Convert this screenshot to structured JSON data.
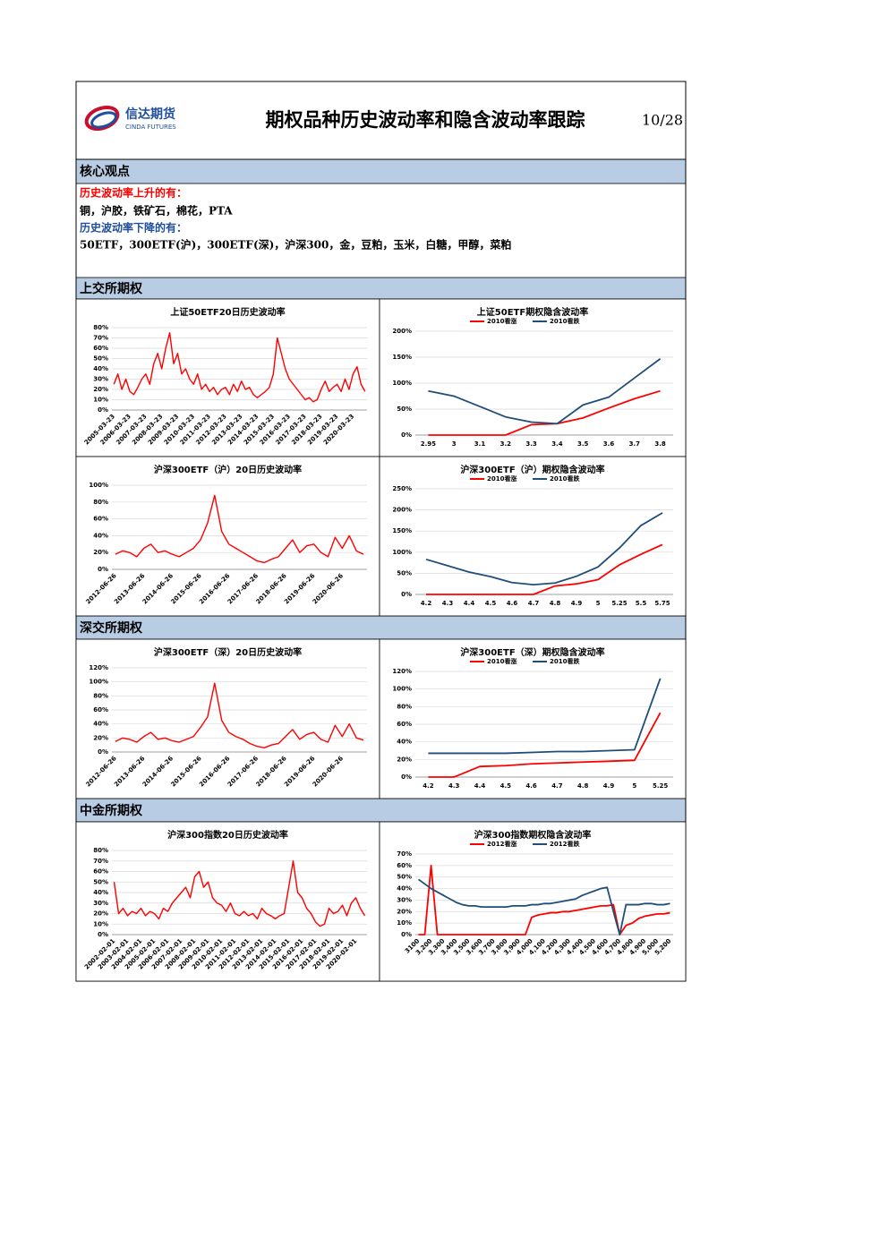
{
  "header": {
    "logo_cn": "信达期货",
    "logo_en": "CINDA FUTURES",
    "title": "期权品种历史波动率和隐含波动率跟踪",
    "date": "10/28"
  },
  "core_view": {
    "title": "核心观点",
    "lines": [
      "历史波动率上升的有：",
      "铜，沪胶，铁矿石，棉花，PTA",
      "历史波动率下降的有：",
      "50ETF，300ETF(沪)，300ETF(深)，沪深300，金，豆粕，玉米，白糖，甲醇，菜粕"
    ]
  },
  "sections": [
    "上交所期权",
    "深交所期权",
    "中金所期权"
  ],
  "chart_data": [
    {
      "type": "line",
      "title": "上证50ETF20日历史波动率",
      "color": "#ff0000",
      "categories": [
        "2005-03-23",
        null,
        null,
        null,
        "2006-03-23",
        null,
        null,
        null,
        "2007-03-23",
        null,
        null,
        null,
        "2008-03-23",
        null,
        null,
        null,
        "2009-03-23",
        null,
        null,
        null,
        "2010-03-23",
        null,
        null,
        null,
        "2011-03-23",
        null,
        null,
        null,
        "2012-03-23",
        null,
        null,
        null,
        "2013-03-23",
        null,
        null,
        null,
        "2014-03-23",
        null,
        null,
        null,
        "2015-03-23",
        null,
        null,
        null,
        "2016-03-23",
        null,
        null,
        null,
        "2017-03-23",
        null,
        null,
        null,
        "2018-03-23",
        null,
        null,
        null,
        "2019-03-23",
        null,
        null,
        null,
        "2020-03-23",
        null,
        null,
        null
      ],
      "values": [
        25,
        35,
        20,
        30,
        18,
        15,
        22,
        30,
        35,
        25,
        45,
        55,
        40,
        60,
        75,
        45,
        55,
        35,
        40,
        30,
        25,
        35,
        20,
        25,
        18,
        22,
        15,
        20,
        22,
        15,
        25,
        18,
        28,
        20,
        22,
        15,
        12,
        15,
        18,
        22,
        35,
        70,
        55,
        40,
        30,
        25,
        20,
        15,
        10,
        12,
        8,
        10,
        20,
        28,
        18,
        22,
        25,
        18,
        30,
        20,
        35,
        42,
        25,
        18
      ],
      "ylim": [
        0,
        80
      ],
      "yticks": [
        {
          "value": 0,
          "label": "0%"
        },
        {
          "value": 10,
          "label": "10%"
        },
        {
          "value": 20,
          "label": "20%"
        },
        {
          "value": 30,
          "label": "30%"
        },
        {
          "value": 40,
          "label": "40%"
        },
        {
          "value": 50,
          "label": "50%"
        },
        {
          "value": 60,
          "label": "60%"
        },
        {
          "value": 70,
          "label": "70%"
        },
        {
          "value": 80,
          "label": "80%"
        }
      ]
    },
    {
      "type": "line",
      "title": "上证50ETF期权隐含波动率",
      "categories": [
        "2.95",
        "3",
        "3.1",
        "3.2",
        "3.3",
        "3.4",
        "3.5",
        "3.6",
        "3.7",
        "3.8"
      ],
      "series": [
        {
          "name": "2010看涨",
          "color": "#ff0000",
          "values": [
            0,
            0,
            0,
            0,
            20,
            22,
            33,
            52,
            70,
            85
          ]
        },
        {
          "name": "2010看跌",
          "color": "#1f4e79",
          "values": [
            85,
            75,
            55,
            35,
            25,
            22,
            58,
            73,
            110,
            147
          ]
        }
      ],
      "ylim": [
        0,
        200
      ],
      "yticks": [
        {
          "value": 0,
          "label": "0%"
        },
        {
          "value": 50,
          "label": "50%"
        },
        {
          "value": 100,
          "label": "100%"
        },
        {
          "value": 150,
          "label": "150%"
        },
        {
          "value": 200,
          "label": "200%"
        }
      ]
    },
    {
      "type": "line",
      "title": "沪深300ETF（沪）20日历史波动率",
      "color": "#ff0000",
      "categories": [
        "2012-06-26",
        null,
        null,
        null,
        "2013-06-26",
        null,
        null,
        null,
        "2014-06-26",
        null,
        null,
        null,
        "2015-06-26",
        null,
        null,
        null,
        "2016-06-26",
        null,
        null,
        null,
        "2017-06-26",
        null,
        null,
        null,
        "2018-06-26",
        null,
        null,
        null,
        "2019-06-26",
        null,
        null,
        null,
        "2020-06-26",
        null,
        null,
        null
      ],
      "values": [
        18,
        22,
        20,
        15,
        25,
        30,
        20,
        22,
        18,
        15,
        20,
        25,
        35,
        55,
        88,
        45,
        30,
        25,
        20,
        15,
        10,
        8,
        12,
        15,
        25,
        35,
        20,
        28,
        30,
        20,
        15,
        38,
        25,
        40,
        22,
        18
      ],
      "ylim": [
        0,
        100
      ],
      "yticks": [
        {
          "value": 0,
          "label": "0%"
        },
        {
          "value": 20,
          "label": "20%"
        },
        {
          "value": 40,
          "label": "40%"
        },
        {
          "value": 60,
          "label": "60%"
        },
        {
          "value": 80,
          "label": "80%"
        },
        {
          "value": 100,
          "label": "100%"
        }
      ]
    },
    {
      "type": "line",
      "title": "沪深300ETF（沪）期权隐含波动率",
      "categories": [
        "4.2",
        "4.3",
        "4.4",
        "4.5",
        "4.6",
        "4.7",
        "4.8",
        "4.9",
        "5",
        "5.25",
        "5.5",
        "5.75"
      ],
      "series": [
        {
          "name": "2010看涨",
          "color": "#ff0000",
          "values": [
            0,
            0,
            0,
            0,
            0,
            0,
            20,
            25,
            35,
            70,
            95,
            118
          ]
        },
        {
          "name": "2010看跌",
          "color": "#1f4e79",
          "values": [
            83,
            68,
            53,
            42,
            28,
            23,
            27,
            43,
            65,
            110,
            163,
            193
          ]
        }
      ],
      "ylim": [
        0,
        250
      ],
      "yticks": [
        {
          "value": 0,
          "label": "0%"
        },
        {
          "value": 50,
          "label": "50%"
        },
        {
          "value": 100,
          "label": "100%"
        },
        {
          "value": 150,
          "label": "150%"
        },
        {
          "value": 200,
          "label": "200%"
        },
        {
          "value": 250,
          "label": "250%"
        }
      ]
    },
    {
      "type": "line",
      "title": "沪深300ETF（深）20日历史波动率",
      "color": "#ff0000",
      "categories": [
        "2012-06-26",
        null,
        null,
        null,
        "2013-06-26",
        null,
        null,
        null,
        "2014-06-26",
        null,
        null,
        null,
        "2015-06-26",
        null,
        null,
        null,
        "2016-06-26",
        null,
        null,
        null,
        "2017-06-26",
        null,
        null,
        null,
        "2018-06-26",
        null,
        null,
        null,
        "2019-06-26",
        null,
        null,
        null,
        "2020-06-26",
        null,
        null,
        null
      ],
      "values": [
        15,
        20,
        18,
        14,
        22,
        28,
        18,
        20,
        16,
        14,
        18,
        22,
        35,
        50,
        98,
        45,
        28,
        22,
        18,
        12,
        8,
        6,
        10,
        12,
        22,
        32,
        18,
        25,
        28,
        18,
        14,
        38,
        22,
        40,
        20,
        17
      ],
      "ylim": [
        0,
        120
      ],
      "yticks": [
        {
          "value": 0,
          "label": "0%"
        },
        {
          "value": 20,
          "label": "20%"
        },
        {
          "value": 40,
          "label": "40%"
        },
        {
          "value": 60,
          "label": "60%"
        },
        {
          "value": 80,
          "label": "80%"
        },
        {
          "value": 100,
          "label": "100%"
        },
        {
          "value": 120,
          "label": "120%"
        }
      ]
    },
    {
      "type": "line",
      "title": "沪深300ETF（深）期权隐含波动率",
      "categories": [
        "4.2",
        "4.3",
        "4.4",
        "4.5",
        "4.6",
        "4.7",
        "4.8",
        "4.9",
        "5",
        "5.25"
      ],
      "series": [
        {
          "name": "2010看涨",
          "color": "#ff0000",
          "values": [
            0,
            0,
            12,
            13,
            15,
            16,
            17,
            18,
            19,
            73
          ]
        },
        {
          "name": "2010看跌",
          "color": "#1f4e79",
          "values": [
            27,
            27,
            27,
            27,
            28,
            29,
            29,
            30,
            31,
            112
          ]
        }
      ],
      "ylim": [
        0,
        120
      ],
      "yticks": [
        {
          "value": 0,
          "label": "0%"
        },
        {
          "value": 20,
          "label": "20%"
        },
        {
          "value": 40,
          "label": "40%"
        },
        {
          "value": 60,
          "label": "60%"
        },
        {
          "value": 80,
          "label": "80%"
        },
        {
          "value": 100,
          "label": "100%"
        },
        {
          "value": 120,
          "label": "120%"
        }
      ]
    },
    {
      "type": "line",
      "title": "沪深300指数20日历史波动率",
      "color": "#ff0000",
      "categories": [
        "2002-02-01",
        null,
        null,
        "2003-02-01",
        null,
        null,
        "2004-02-01",
        null,
        null,
        "2005-02-01",
        null,
        null,
        "2006-02-01",
        null,
        null,
        "2007-02-01",
        null,
        null,
        "2008-02-01",
        null,
        null,
        "2009-02-01",
        null,
        null,
        "2010-02-01",
        null,
        null,
        "2011-02-01",
        null,
        null,
        "2012-02-01",
        null,
        null,
        "2013-02-01",
        null,
        null,
        "2014-02-01",
        null,
        null,
        "2015-02-01",
        null,
        null,
        "2016-02-01",
        null,
        null,
        "2017-02-01",
        null,
        null,
        "2018-02-01",
        null,
        null,
        "2019-02-01",
        null,
        null,
        "2020-02-01",
        null,
        null
      ],
      "values": [
        50,
        20,
        25,
        18,
        22,
        20,
        25,
        18,
        22,
        20,
        15,
        25,
        22,
        30,
        35,
        40,
        45,
        35,
        55,
        60,
        45,
        50,
        35,
        30,
        28,
        22,
        30,
        20,
        18,
        22,
        18,
        20,
        15,
        25,
        20,
        18,
        15,
        18,
        20,
        45,
        70,
        40,
        35,
        25,
        20,
        12,
        8,
        10,
        25,
        20,
        22,
        28,
        18,
        30,
        35,
        25,
        18
      ],
      "ylim": [
        0,
        80
      ],
      "yticks": [
        {
          "value": 0,
          "label": "0%"
        },
        {
          "value": 10,
          "label": "10%"
        },
        {
          "value": 20,
          "label": "20%"
        },
        {
          "value": 30,
          "label": "30%"
        },
        {
          "value": 40,
          "label": "40%"
        },
        {
          "value": 50,
          "label": "50%"
        },
        {
          "value": 60,
          "label": "60%"
        },
        {
          "value": 70,
          "label": "70%"
        },
        {
          "value": 80,
          "label": "80%"
        }
      ]
    },
    {
      "type": "line",
      "title": "沪深300指数期权隐含波动率",
      "categories": [
        "3100",
        null,
        "3,200",
        null,
        "3,300",
        null,
        "3,400",
        null,
        "3,500",
        null,
        "3,600",
        null,
        "3,700",
        null,
        "3,800",
        null,
        "3,900",
        null,
        "4,000",
        null,
        "4,100",
        null,
        "4,200",
        null,
        "4,300",
        null,
        "4,400",
        null,
        "4,500",
        null,
        "4,600",
        null,
        "4,700",
        null,
        "4,800",
        null,
        "4,900",
        null,
        "5,000",
        null,
        "5,200"
      ],
      "series": [
        {
          "name": "2012看涨",
          "color": "#ff0000",
          "values": [
            0,
            0,
            60,
            0,
            0,
            0,
            0,
            0,
            0,
            0,
            0,
            0,
            0,
            0,
            0,
            0,
            0,
            0,
            15,
            17,
            18,
            19,
            19,
            20,
            20,
            21,
            22,
            23,
            24,
            25,
            25,
            26,
            0,
            8,
            10,
            14,
            16,
            17,
            18,
            18,
            19
          ]
        },
        {
          "name": "2012看跌",
          "color": "#1f4e79",
          "values": [
            48,
            44,
            40,
            37,
            34,
            31,
            28,
            26,
            25,
            25,
            24,
            24,
            24,
            24,
            24,
            25,
            25,
            25,
            26,
            26,
            27,
            27,
            28,
            29,
            30,
            31,
            34,
            36,
            38,
            40,
            41,
            20,
            0,
            26,
            26,
            26,
            27,
            27,
            26,
            26,
            27
          ]
        }
      ],
      "ylim": [
        0,
        70
      ],
      "yticks": [
        {
          "value": 0,
          "label": "0%"
        },
        {
          "value": 10,
          "label": "10%"
        },
        {
          "value": 20,
          "label": "20%"
        },
        {
          "value": 30,
          "label": "30%"
        },
        {
          "value": 40,
          "label": "40%"
        },
        {
          "value": 50,
          "label": "50%"
        },
        {
          "value": 60,
          "label": "60%"
        },
        {
          "value": 70,
          "label": "70%"
        }
      ]
    }
  ]
}
